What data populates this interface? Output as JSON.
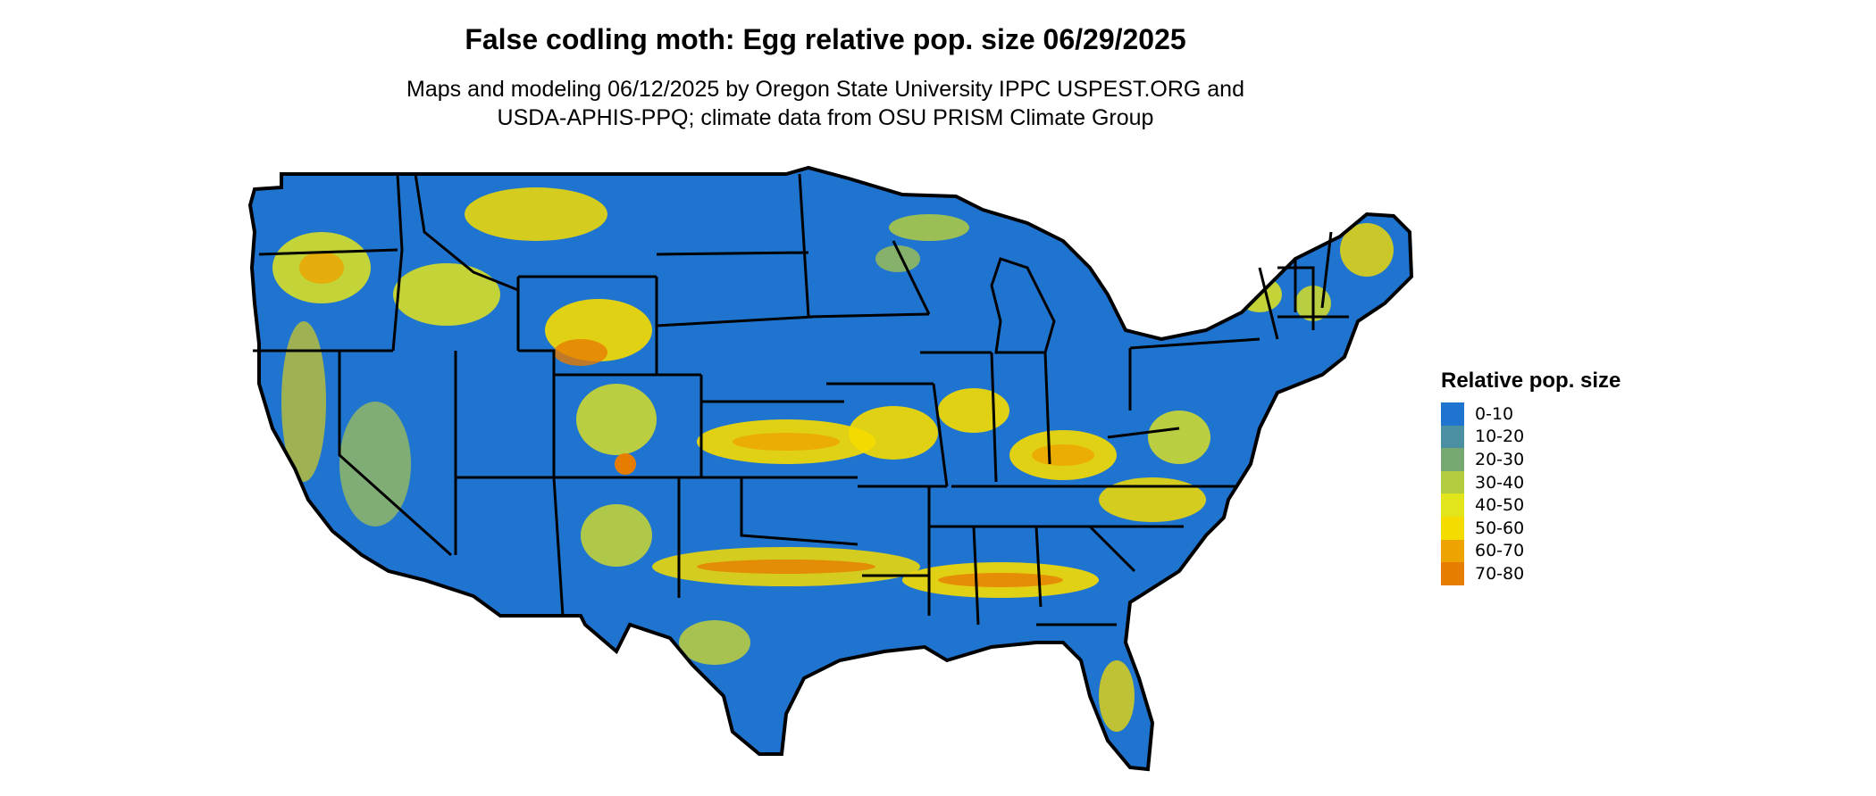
{
  "title": "False codling moth: Egg relative pop. size 06/29/2025",
  "subtitle_lines": [
    "Maps and modeling 06/12/2025 by Oregon State University IPPC USPEST.ORG and",
    "USDA-APHIS-PPQ; climate data from OSU PRISM Climate Group"
  ],
  "legend": {
    "title": "Relative pop. size",
    "items": [
      {
        "label": "0-10",
        "color": "#1f74d0"
      },
      {
        "label": "10-20",
        "color": "#4a8fa2"
      },
      {
        "label": "20-30",
        "color": "#77a872"
      },
      {
        "label": "30-40",
        "color": "#b2cc3f"
      },
      {
        "label": "40-50",
        "color": "#e2e41c"
      },
      {
        "label": "50-60",
        "color": "#f5dc00"
      },
      {
        "label": "60-70",
        "color": "#eea400"
      },
      {
        "label": "70-80",
        "color": "#e67c00"
      }
    ]
  },
  "map": {
    "base_color": "#1f74d0",
    "border_color": "#000000"
  }
}
